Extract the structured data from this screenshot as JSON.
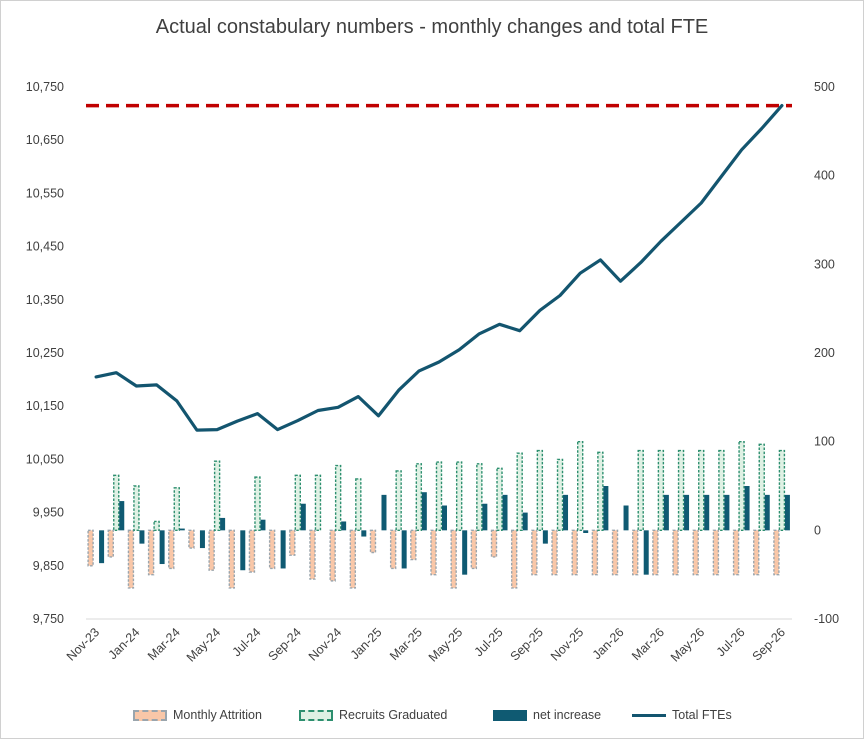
{
  "chart_data": {
    "type": "bar",
    "title": "Actual constabulary numbers - monthly changes and total FTE",
    "x_labels": [
      "Nov-23",
      "Jan-24",
      "Mar-24",
      "May-24",
      "Jul-24",
      "Sep-24",
      "Nov-24",
      "Jan-25",
      "Mar-25",
      "May-25",
      "Jul-25",
      "Sep-25",
      "Nov-25",
      "Jan-26",
      "Mar-26",
      "May-26",
      "Jul-26",
      "Sep-26"
    ],
    "x": [
      "Nov-23",
      "Dec-23",
      "Jan-24",
      "Feb-24",
      "Mar-24",
      "Apr-24",
      "May-24",
      "Jun-24",
      "Jul-24",
      "Aug-24",
      "Sep-24",
      "Oct-24",
      "Nov-24",
      "Dec-24",
      "Jan-25",
      "Feb-25",
      "Mar-25",
      "Apr-25",
      "May-25",
      "Jun-25",
      "Jul-25",
      "Aug-25",
      "Sep-25",
      "Oct-25",
      "Nov-25",
      "Dec-25",
      "Jan-26",
      "Feb-26",
      "Mar-26",
      "Apr-26",
      "May-26",
      "Jun-26",
      "Jul-26",
      "Aug-26",
      "Sep-26"
    ],
    "y_left_ticks": [
      "9,750",
      "9,850",
      "9,950",
      "10,050",
      "10,150",
      "10,250",
      "10,350",
      "10,450",
      "10,550",
      "10,650",
      "10,750"
    ],
    "y_right_ticks": [
      "-100",
      "0",
      "100",
      "200",
      "300",
      "400",
      "500"
    ],
    "ylim_left": [
      9750,
      10750
    ],
    "ylim_right": [
      -100,
      500
    ],
    "grid": false,
    "legend_position": "bottom",
    "target_line": {
      "value": 10715,
      "axis": "left",
      "color": "#c00000",
      "style": "dashed"
    },
    "series": [
      {
        "name": "Monthly Attrition",
        "type": "bar",
        "axis": "right",
        "color": "#f9c7a8",
        "border": "#9aa5ad",
        "values": [
          -40,
          -30,
          -65,
          -50,
          -43,
          -20,
          -45,
          -65,
          -47,
          -43,
          -28,
          -55,
          -57,
          -65,
          -25,
          -43,
          -33,
          -50,
          -65,
          -43,
          -30,
          -65,
          -50,
          -50,
          -50,
          -50,
          -50,
          -50,
          -50,
          -50,
          -50,
          -50,
          -50,
          -50,
          -50
        ]
      },
      {
        "name": "Recruits Graduated",
        "type": "bar",
        "axis": "right",
        "color": "#dff1e4",
        "border": "#2d8f6f",
        "values": [
          0,
          62,
          50,
          10,
          48,
          0,
          78,
          0,
          60,
          0,
          62,
          62,
          73,
          58,
          0,
          67,
          75,
          77,
          77,
          75,
          70,
          87,
          90,
          80,
          100,
          88,
          0,
          90,
          90,
          90,
          90,
          90,
          100,
          97,
          90
        ]
      },
      {
        "name": "net increase",
        "type": "bar",
        "axis": "right",
        "color": "#0f5a72",
        "values": [
          -37,
          33,
          -15,
          -38,
          2,
          -20,
          14,
          -45,
          12,
          -43,
          30,
          0,
          10,
          -7,
          40,
          -43,
          43,
          28,
          -50,
          30,
          40,
          20,
          -15,
          40,
          -3,
          50,
          28,
          -50,
          40,
          40,
          40,
          40,
          50,
          40,
          40
        ]
      },
      {
        "name": "Total FTEs",
        "type": "line",
        "axis": "left",
        "color": "#13556f",
        "values": [
          10205,
          10213,
          10188,
          10190,
          10160,
          10105,
          10106,
          10122,
          10136,
          10106,
          10123,
          10142,
          10148,
          10168,
          10132,
          10180,
          10216,
          10233,
          10256,
          10286,
          10304,
          10292,
          10330,
          10358,
          10400,
          10425,
          10385,
          10420,
          10460,
          10496,
          10532,
          10582,
          10632,
          10672,
          10715
        ]
      }
    ]
  }
}
